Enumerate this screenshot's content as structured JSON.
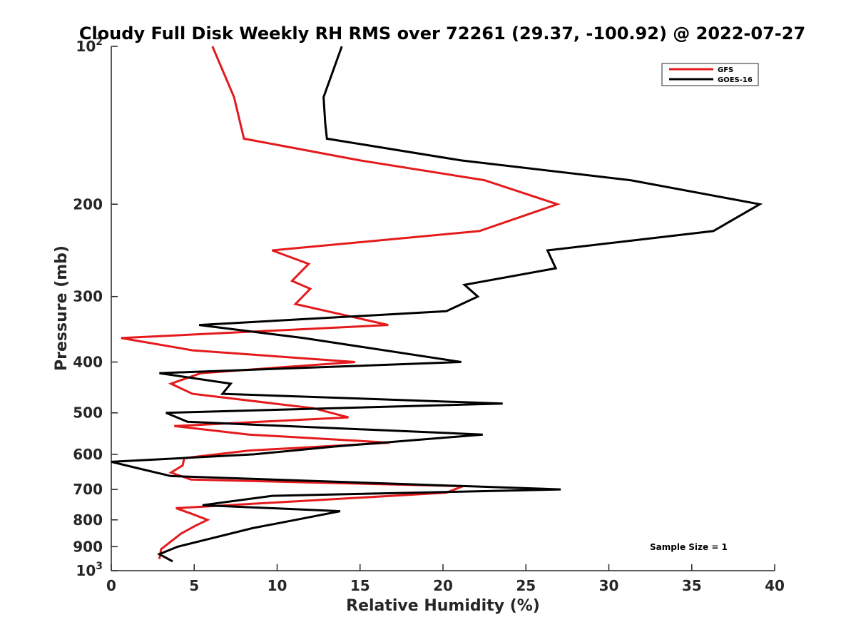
{
  "chart_data": {
    "type": "line",
    "title": "Cloudy Full Disk Weekly RH RMS over 72261 (29.37, -100.92) @ 2022-07-27",
    "xlabel": "Relative Humidity (%)",
    "ylabel": "Pressure (mb)",
    "xlim": [
      0,
      40
    ],
    "ylim": [
      100,
      1000
    ],
    "yscale": "log",
    "y_reversed": true,
    "xticks": [
      0,
      5,
      10,
      15,
      20,
      25,
      30,
      35,
      40
    ],
    "yticks": [
      {
        "value": 100,
        "base": "10",
        "exp": "2"
      },
      {
        "value": 200,
        "label": "200"
      },
      {
        "value": 300,
        "label": "300"
      },
      {
        "value": 400,
        "label": "400"
      },
      {
        "value": 500,
        "label": "500"
      },
      {
        "value": 600,
        "label": "600"
      },
      {
        "value": 700,
        "label": "700"
      },
      {
        "value": 800,
        "label": "800"
      },
      {
        "value": 900,
        "label": "900"
      },
      {
        "value": 1000,
        "base": "10",
        "exp": "3"
      }
    ],
    "legend_position": "top-right",
    "annotation": "Sample Size = 1",
    "series": [
      {
        "name": "GFS",
        "color": "#e41a1c",
        "x": [
          6.1,
          7.4,
          8.0,
          15.0,
          22.5,
          26.9,
          22.2,
          9.7,
          11.9,
          10.9,
          12.0,
          11.1,
          16.7,
          0.6,
          4.9,
          14.7,
          5.4,
          3.6,
          4.9,
          12.2,
          14.3,
          3.8,
          8.3,
          16.8,
          8.3,
          4.4,
          4.3,
          3.6,
          4.8,
          21.2,
          20.2,
          3.9,
          4.9,
          5.8,
          5.1,
          4.2,
          3.0,
          2.9
        ],
        "y": [
          100,
          125,
          150,
          165,
          180,
          200,
          225,
          245,
          260,
          280,
          290,
          310,
          340,
          360,
          380,
          400,
          420,
          440,
          460,
          490,
          510,
          530,
          550,
          570,
          590,
          610,
          630,
          650,
          670,
          690,
          710,
          760,
          780,
          800,
          820,
          850,
          910,
          950
        ]
      },
      {
        "name": "GOES-16",
        "color": "#000000",
        "x": [
          13.9,
          12.8,
          12.9,
          13.0,
          21.1,
          31.3,
          39.1,
          36.3,
          26.3,
          26.8,
          21.3,
          22.1,
          20.2,
          5.3,
          11.6,
          21.1,
          2.9,
          7.2,
          6.7,
          23.6,
          3.3,
          4.6,
          22.4,
          13.4,
          8.6,
          0.0,
          1.8,
          3.6,
          27.1,
          9.7,
          5.5,
          13.8,
          12.0,
          8.5,
          4.0,
          2.9,
          3.7
        ],
        "y": [
          100,
          125,
          140,
          150,
          165,
          180,
          200,
          225,
          245,
          265,
          285,
          300,
          320,
          340,
          360,
          400,
          420,
          440,
          460,
          480,
          500,
          520,
          550,
          580,
          600,
          620,
          640,
          660,
          700,
          720,
          750,
          770,
          790,
          830,
          900,
          930,
          960
        ]
      }
    ]
  }
}
